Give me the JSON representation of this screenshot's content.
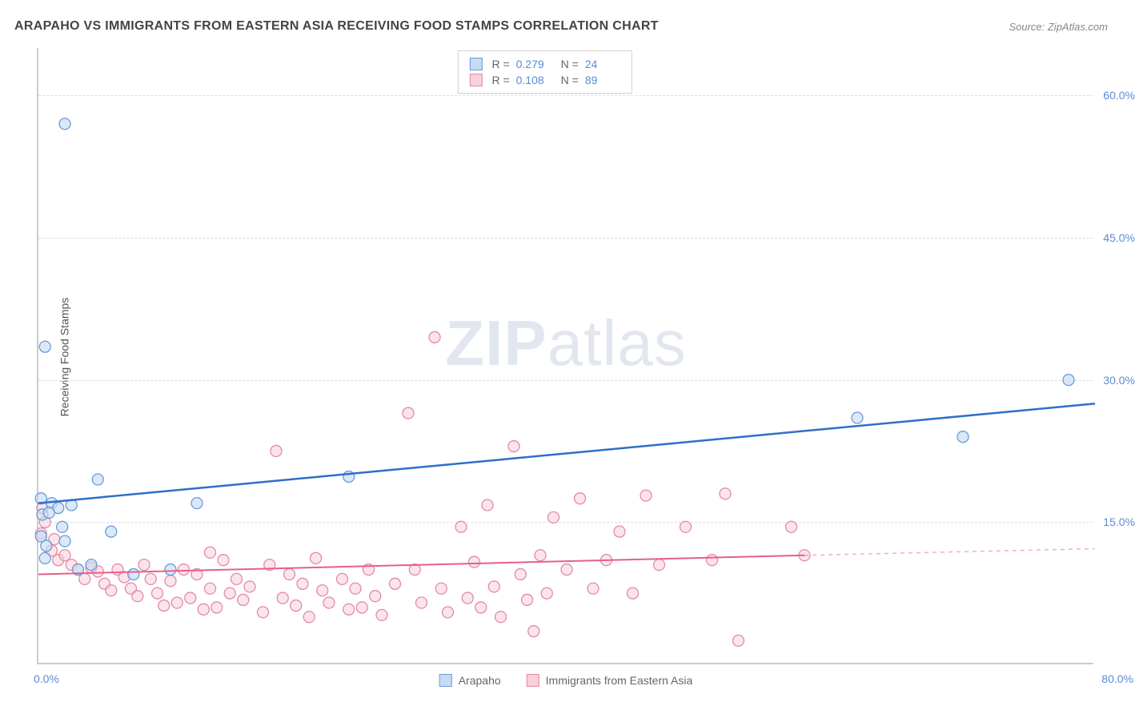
{
  "title": "ARAPAHO VS IMMIGRANTS FROM EASTERN ASIA RECEIVING FOOD STAMPS CORRELATION CHART",
  "source_prefix": "Source: ",
  "source_name": "ZipAtlas.com",
  "ylabel": "Receiving Food Stamps",
  "watermark_bold": "ZIP",
  "watermark_light": "atlas",
  "chart": {
    "type": "scatter",
    "xlim": [
      0,
      80
    ],
    "ylim": [
      0,
      65
    ],
    "ytick_values": [
      15,
      30,
      45,
      60
    ],
    "ytick_labels": [
      "15.0%",
      "30.0%",
      "45.0%",
      "60.0%"
    ],
    "xtick_left": "0.0%",
    "xtick_right": "80.0%",
    "background_color": "#ffffff",
    "grid_color": "#dddddd",
    "axis_color": "#cccccc",
    "series": [
      {
        "name": "Arapaho",
        "fill": "#c7dbf2",
        "stroke": "#6a9bd8",
        "fill_opacity": 0.65,
        "marker_r": 7,
        "trend_stroke": "#2f6fc9",
        "trend_width": 2.5,
        "trend_x1": 0,
        "trend_y1": 17.0,
        "trend_x2": 80,
        "trend_y2": 27.5,
        "dashed_from_x": 80,
        "stats": {
          "R": "0.279",
          "N": "24"
        },
        "points": [
          {
            "x": 0.5,
            "y": 33.5
          },
          {
            "x": 2.0,
            "y": 57.0
          },
          {
            "x": 0.2,
            "y": 17.5
          },
          {
            "x": 1.0,
            "y": 17.0
          },
          {
            "x": 1.5,
            "y": 16.5
          },
          {
            "x": 0.3,
            "y": 15.8
          },
          {
            "x": 4.5,
            "y": 19.5
          },
          {
            "x": 2.0,
            "y": 13.0
          },
          {
            "x": 5.5,
            "y": 14.0
          },
          {
            "x": 0.2,
            "y": 13.5
          },
          {
            "x": 0.5,
            "y": 11.2
          },
          {
            "x": 3.0,
            "y": 10.0
          },
          {
            "x": 4.0,
            "y": 10.5
          },
          {
            "x": 7.2,
            "y": 9.5
          },
          {
            "x": 10.0,
            "y": 10.0
          },
          {
            "x": 12.0,
            "y": 17.0
          },
          {
            "x": 23.5,
            "y": 19.8
          },
          {
            "x": 62.0,
            "y": 26.0
          },
          {
            "x": 70.0,
            "y": 24.0
          },
          {
            "x": 78.0,
            "y": 30.0
          },
          {
            "x": 0.8,
            "y": 16.0
          },
          {
            "x": 1.8,
            "y": 14.5
          },
          {
            "x": 0.6,
            "y": 12.5
          },
          {
            "x": 2.5,
            "y": 16.8
          }
        ]
      },
      {
        "name": "Immigrants from Eastern Asia",
        "fill": "#f6d0da",
        "stroke": "#e48aa4",
        "fill_opacity": 0.55,
        "marker_r": 7,
        "trend_stroke": "#e65f8a",
        "trend_width": 2,
        "trend_x1": 0,
        "trend_y1": 9.5,
        "trend_x2": 58,
        "trend_y2": 11.5,
        "dashed_ext_x2": 80,
        "dashed_ext_y2": 12.2,
        "stats": {
          "R": "0.108",
          "N": "89"
        },
        "points": [
          {
            "x": 0.3,
            "y": 16.5
          },
          {
            "x": 0.5,
            "y": 15.0
          },
          {
            "x": 0.2,
            "y": 13.8
          },
          {
            "x": 1.0,
            "y": 12.0
          },
          {
            "x": 1.5,
            "y": 11.0
          },
          {
            "x": 2.0,
            "y": 11.5
          },
          {
            "x": 2.5,
            "y": 10.5
          },
          {
            "x": 3.0,
            "y": 10.0
          },
          {
            "x": 3.5,
            "y": 9.0
          },
          {
            "x": 4.0,
            "y": 10.2
          },
          {
            "x": 4.5,
            "y": 9.8
          },
          {
            "x": 5.0,
            "y": 8.5
          },
          {
            "x": 5.5,
            "y": 7.8
          },
          {
            "x": 6.0,
            "y": 10.0
          },
          {
            "x": 6.5,
            "y": 9.2
          },
          {
            "x": 7.0,
            "y": 8.0
          },
          {
            "x": 7.5,
            "y": 7.2
          },
          {
            "x": 8.0,
            "y": 10.5
          },
          {
            "x": 8.5,
            "y": 9.0
          },
          {
            "x": 9.0,
            "y": 7.5
          },
          {
            "x": 9.5,
            "y": 6.2
          },
          {
            "x": 10.0,
            "y": 8.8
          },
          {
            "x": 10.5,
            "y": 6.5
          },
          {
            "x": 11.0,
            "y": 10.0
          },
          {
            "x": 11.5,
            "y": 7.0
          },
          {
            "x": 12.0,
            "y": 9.5
          },
          {
            "x": 12.5,
            "y": 5.8
          },
          {
            "x": 13.0,
            "y": 8.0
          },
          {
            "x": 13.5,
            "y": 6.0
          },
          {
            "x": 14.0,
            "y": 11.0
          },
          {
            "x": 14.5,
            "y": 7.5
          },
          {
            "x": 15.0,
            "y": 9.0
          },
          {
            "x": 15.5,
            "y": 6.8
          },
          {
            "x": 16.0,
            "y": 8.2
          },
          {
            "x": 17.0,
            "y": 5.5
          },
          {
            "x": 17.5,
            "y": 10.5
          },
          {
            "x": 18.0,
            "y": 22.5
          },
          {
            "x": 18.5,
            "y": 7.0
          },
          {
            "x": 19.0,
            "y": 9.5
          },
          {
            "x": 19.5,
            "y": 6.2
          },
          {
            "x": 20.0,
            "y": 8.5
          },
          {
            "x": 20.5,
            "y": 5.0
          },
          {
            "x": 21.0,
            "y": 11.2
          },
          {
            "x": 21.5,
            "y": 7.8
          },
          {
            "x": 22.0,
            "y": 6.5
          },
          {
            "x": 23.0,
            "y": 9.0
          },
          {
            "x": 23.5,
            "y": 5.8
          },
          {
            "x": 24.0,
            "y": 8.0
          },
          {
            "x": 24.5,
            "y": 6.0
          },
          {
            "x": 25.0,
            "y": 10.0
          },
          {
            "x": 25.5,
            "y": 7.2
          },
          {
            "x": 26.0,
            "y": 5.2
          },
          {
            "x": 27.0,
            "y": 8.5
          },
          {
            "x": 28.0,
            "y": 26.5
          },
          {
            "x": 28.5,
            "y": 10.0
          },
          {
            "x": 29.0,
            "y": 6.5
          },
          {
            "x": 30.0,
            "y": 34.5
          },
          {
            "x": 30.5,
            "y": 8.0
          },
          {
            "x": 31.0,
            "y": 5.5
          },
          {
            "x": 32.0,
            "y": 14.5
          },
          {
            "x": 32.5,
            "y": 7.0
          },
          {
            "x": 33.0,
            "y": 10.8
          },
          {
            "x": 33.5,
            "y": 6.0
          },
          {
            "x": 34.0,
            "y": 16.8
          },
          {
            "x": 34.5,
            "y": 8.2
          },
          {
            "x": 35.0,
            "y": 5.0
          },
          {
            "x": 36.0,
            "y": 23.0
          },
          {
            "x": 36.5,
            "y": 9.5
          },
          {
            "x": 37.0,
            "y": 6.8
          },
          {
            "x": 37.5,
            "y": 3.5
          },
          {
            "x": 38.0,
            "y": 11.5
          },
          {
            "x": 38.5,
            "y": 7.5
          },
          {
            "x": 39.0,
            "y": 15.5
          },
          {
            "x": 40.0,
            "y": 10.0
          },
          {
            "x": 41.0,
            "y": 17.5
          },
          {
            "x": 42.0,
            "y": 8.0
          },
          {
            "x": 43.0,
            "y": 11.0
          },
          {
            "x": 44.0,
            "y": 14.0
          },
          {
            "x": 45.0,
            "y": 7.5
          },
          {
            "x": 46.0,
            "y": 17.8
          },
          {
            "x": 47.0,
            "y": 10.5
          },
          {
            "x": 49.0,
            "y": 14.5
          },
          {
            "x": 51.0,
            "y": 11.0
          },
          {
            "x": 52.0,
            "y": 18.0
          },
          {
            "x": 53.0,
            "y": 2.5
          },
          {
            "x": 57.0,
            "y": 14.5
          },
          {
            "x": 58.0,
            "y": 11.5
          },
          {
            "x": 13.0,
            "y": 11.8
          },
          {
            "x": 1.2,
            "y": 13.2
          }
        ]
      }
    ]
  },
  "legend_top": {
    "r_label": "R =",
    "n_label": "N ="
  },
  "legend_bottom": [
    {
      "label": "Arapaho",
      "fill": "#c7dbf2",
      "stroke": "#6a9bd8"
    },
    {
      "label": "Immigrants from Eastern Asia",
      "fill": "#f6d0da",
      "stroke": "#e48aa4"
    }
  ]
}
